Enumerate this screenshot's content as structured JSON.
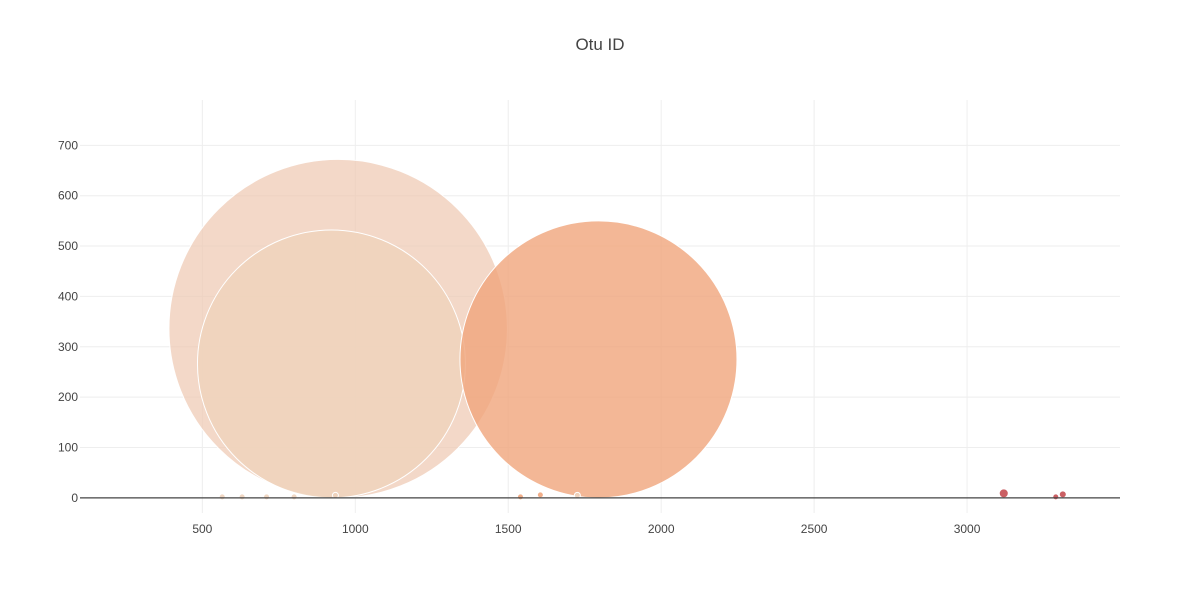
{
  "chart_data": {
    "type": "scatter",
    "title": "Otu ID",
    "xlabel": "",
    "ylabel": "",
    "xlim": [
      100,
      3500
    ],
    "ylim": [
      -30,
      790
    ],
    "x_ticks": [
      500,
      1000,
      1500,
      2000,
      2500,
      3000
    ],
    "y_ticks": [
      0,
      100,
      200,
      300,
      400,
      500,
      600,
      700
    ],
    "grid": true,
    "legend": "none",
    "marker_size_encodes_y": true,
    "points": [
      {
        "x": 944,
        "y": 336,
        "color": "#eec7b0",
        "opacity": 0.7
      },
      {
        "x": 922,
        "y": 266,
        "color": "#eed3bc",
        "opacity": 0.85
      },
      {
        "x": 1795,
        "y": 275,
        "color": "#f0a57c",
        "opacity": 0.8
      },
      {
        "x": 3120,
        "y": 9,
        "color": "#c44e52",
        "opacity": 0.9
      },
      {
        "x": 3313,
        "y": 7,
        "color": "#c44e52",
        "opacity": 0.9
      },
      {
        "x": 1605,
        "y": 6,
        "color": "#f0a57c",
        "opacity": 0.9
      },
      {
        "x": 1726,
        "y": 5,
        "color": "#eed3bc",
        "opacity": 0.9
      },
      {
        "x": 935,
        "y": 5,
        "color": "#eed3bc",
        "opacity": 0.9
      },
      {
        "x": 565,
        "y": 2,
        "color": "#eed3bc",
        "opacity": 0.9
      },
      {
        "x": 630,
        "y": 2,
        "color": "#eed3bc",
        "opacity": 0.9
      },
      {
        "x": 710,
        "y": 2,
        "color": "#eed3bc",
        "opacity": 0.9
      },
      {
        "x": 800,
        "y": 2,
        "color": "#eed3bc",
        "opacity": 0.9
      },
      {
        "x": 1540,
        "y": 2,
        "color": "#f0a57c",
        "opacity": 0.9
      },
      {
        "x": 3290,
        "y": 2,
        "color": "#c44e52",
        "opacity": 0.9
      }
    ]
  }
}
